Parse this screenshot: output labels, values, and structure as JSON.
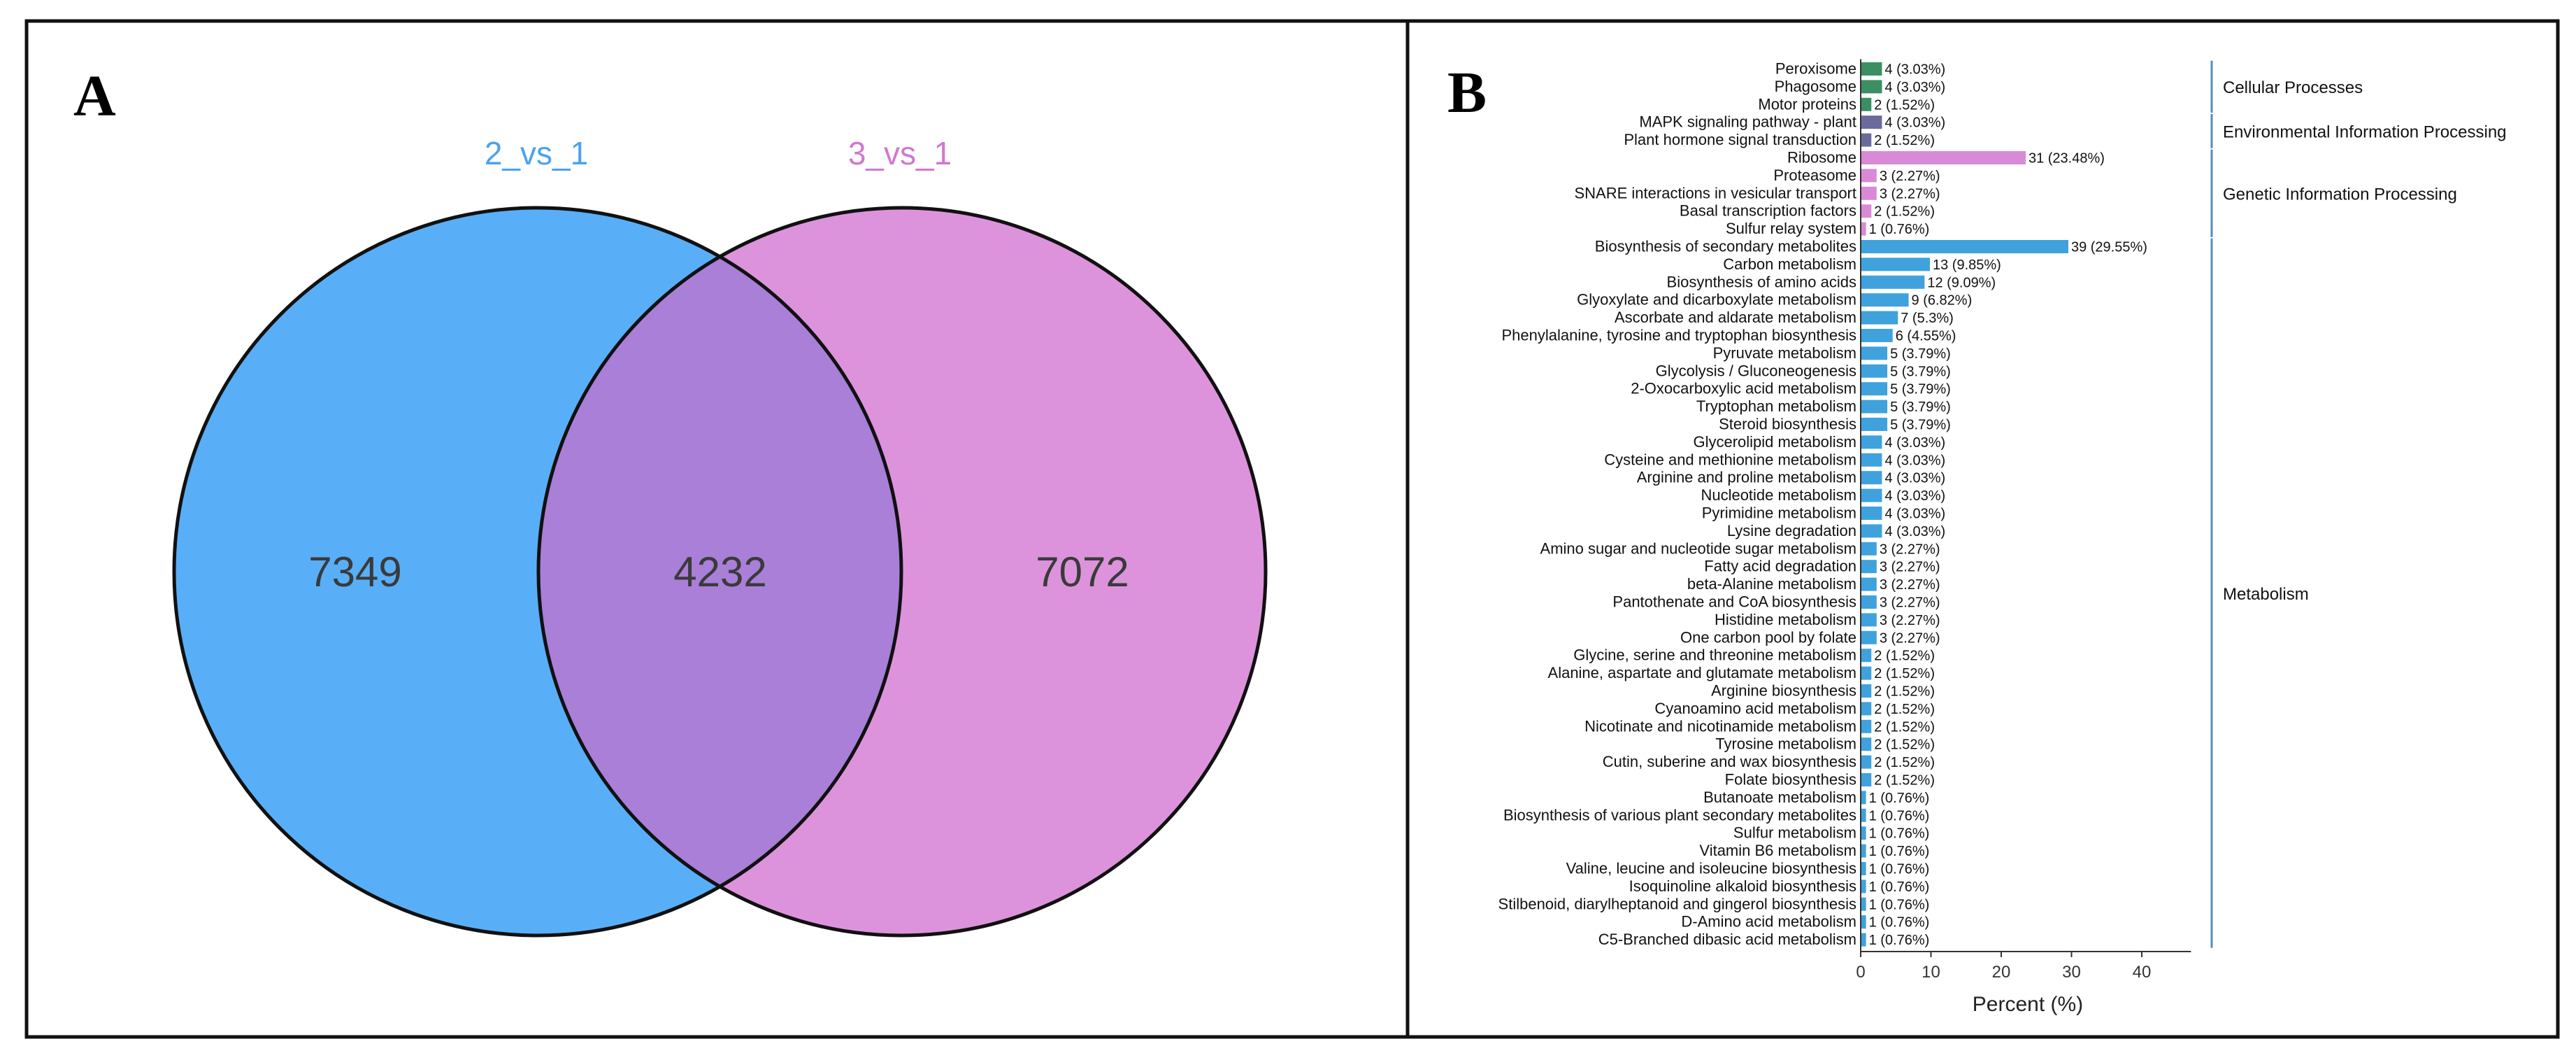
{
  "colors": {
    "venn_a": "#58aff7",
    "venn_b": "#dd93dc",
    "venn_overlap": "#a97fd8",
    "venn_label_a": "#4aa3ee",
    "venn_label_b": "#cf79cf",
    "cellular": "#3b8f63",
    "environmental": "#6a6b9c",
    "genetic": "#d98ad6",
    "metabolism": "#3fa2dd",
    "bracket": "#4f8fb8"
  },
  "panel_a": {
    "letter": "A",
    "venn": {
      "set_a_label": "2_vs_1",
      "set_b_label": "3_vs_1",
      "only_a": "7349",
      "overlap": "4232",
      "only_b": "7072"
    }
  },
  "panel_b": {
    "letter": "B"
  },
  "chart_data": [
    {
      "type": "venn",
      "sets": [
        "2_vs_1",
        "3_vs_1"
      ],
      "regions": {
        "2_vs_1 only": 7349,
        "2_vs_1 & 3_vs_1": 4232,
        "3_vs_1 only": 7072
      }
    },
    {
      "type": "bar",
      "orientation": "horizontal",
      "title": "",
      "xlabel": "Percent (%)",
      "ylabel": "",
      "xlim": [
        0,
        47
      ],
      "xticks": [
        0,
        10,
        20,
        30,
        40
      ],
      "groups": [
        {
          "name": "Cellular Processes",
          "color_key": "cellular",
          "start": 0,
          "end": 2
        },
        {
          "name": "Environmental Information Processing",
          "color_key": "environmental",
          "start": 3,
          "end": 4
        },
        {
          "name": "Genetic Information Processing",
          "color_key": "genetic",
          "start": 5,
          "end": 9
        },
        {
          "name": "Metabolism",
          "color_key": "metabolism",
          "start": 10,
          "end": 49
        }
      ],
      "categories": [
        "Peroxisome",
        "Phagosome",
        "Motor proteins",
        "MAPK signaling pathway - plant",
        "Plant hormone signal transduction",
        "Ribosome",
        "Proteasome",
        "SNARE interactions in vesicular transport",
        "Basal transcription factors",
        "Sulfur relay system",
        "Biosynthesis of secondary metabolites",
        "Carbon metabolism",
        "Biosynthesis of amino acids",
        "Glyoxylate and dicarboxylate metabolism",
        "Ascorbate and aldarate metabolism",
        "Phenylalanine, tyrosine and tryptophan biosynthesis",
        "Pyruvate metabolism",
        "Glycolysis / Gluconeogenesis",
        "2-Oxocarboxylic acid metabolism",
        "Tryptophan metabolism",
        "Steroid biosynthesis",
        "Glycerolipid metabolism",
        "Cysteine and methionine metabolism",
        "Arginine and proline metabolism",
        "Nucleotide metabolism",
        "Pyrimidine metabolism",
        "Lysine degradation",
        "Amino sugar and nucleotide sugar metabolism",
        "Fatty acid degradation",
        "beta-Alanine metabolism",
        "Pantothenate and CoA biosynthesis",
        "Histidine metabolism",
        "One carbon pool by folate",
        "Glycine, serine and threonine metabolism",
        "Alanine, aspartate and glutamate metabolism",
        "Arginine biosynthesis",
        "Cyanoamino acid metabolism",
        "Nicotinate and nicotinamide metabolism",
        "Tyrosine metabolism",
        "Cutin, suberine and wax biosynthesis",
        "Folate biosynthesis",
        "Butanoate metabolism",
        "Biosynthesis of various plant secondary metabolites",
        "Sulfur metabolism",
        "Vitamin B6 metabolism",
        "Valine, leucine and isoleucine biosynthesis",
        "Isoquinoline alkaloid biosynthesis",
        "Stilbenoid, diarylheptanoid and gingerol biosynthesis",
        "D-Amino acid metabolism",
        "C5-Branched dibasic acid metabolism"
      ],
      "values": [
        3.03,
        3.03,
        1.52,
        3.03,
        1.52,
        23.48,
        2.27,
        2.27,
        1.52,
        0.76,
        29.55,
        9.85,
        9.09,
        6.82,
        5.3,
        4.55,
        3.79,
        3.79,
        3.79,
        3.79,
        3.79,
        3.03,
        3.03,
        3.03,
        3.03,
        3.03,
        3.03,
        2.27,
        2.27,
        2.27,
        2.27,
        2.27,
        2.27,
        1.52,
        1.52,
        1.52,
        1.52,
        1.52,
        1.52,
        1.52,
        1.52,
        0.76,
        0.76,
        0.76,
        0.76,
        0.76,
        0.76,
        0.76,
        0.76,
        0.76
      ],
      "data_labels": [
        "4 (3.03%)",
        "4 (3.03%)",
        "2 (1.52%)",
        "4 (3.03%)",
        "2 (1.52%)",
        "31 (23.48%)",
        "3 (2.27%)",
        "3 (2.27%)",
        "2 (1.52%)",
        "1 (0.76%)",
        "39 (29.55%)",
        "13 (9.85%)",
        "12 (9.09%)",
        "9 (6.82%)",
        "7 (5.3%)",
        "6 (4.55%)",
        "5 (3.79%)",
        "5 (3.79%)",
        "5 (3.79%)",
        "5 (3.79%)",
        "5 (3.79%)",
        "4 (3.03%)",
        "4 (3.03%)",
        "4 (3.03%)",
        "4 (3.03%)",
        "4 (3.03%)",
        "4 (3.03%)",
        "3 (2.27%)",
        "3 (2.27%)",
        "3 (2.27%)",
        "3 (2.27%)",
        "3 (2.27%)",
        "3 (2.27%)",
        "2 (1.52%)",
        "2 (1.52%)",
        "2 (1.52%)",
        "2 (1.52%)",
        "2 (1.52%)",
        "2 (1.52%)",
        "2 (1.52%)",
        "2 (1.52%)",
        "1 (0.76%)",
        "1 (0.76%)",
        "1 (0.76%)",
        "1 (0.76%)",
        "1 (0.76%)",
        "1 (0.76%)",
        "1 (0.76%)",
        "1 (0.76%)",
        "1 (0.76%)"
      ]
    }
  ]
}
